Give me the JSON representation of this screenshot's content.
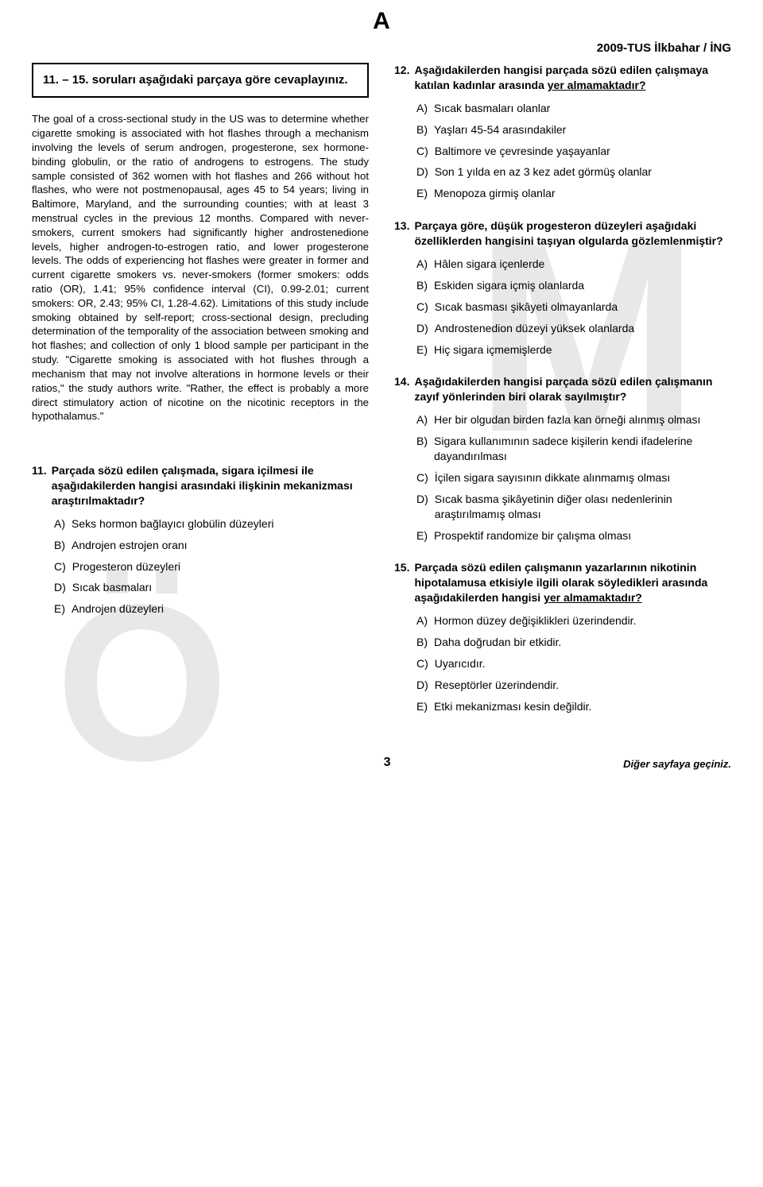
{
  "meta": {
    "top_letter": "A",
    "header_right": "2009-TUS İlkbahar / İNG",
    "page_number": "3",
    "footer_right": "Diğer sayfaya geçiniz."
  },
  "watermarks": {
    "wm1": "M",
    "wm2": "Ö"
  },
  "instruction": "11. – 15. soruları aşağıdaki parçaya göre cevaplayınız.",
  "passage": "The goal of a cross-sectional study in the US was to determine whether cigarette smoking is associated with hot flashes through a mechanism involving the levels of serum androgen, progesterone, sex hormone-binding globulin, or the ratio of androgens to estrogens. The study sample consisted of 362 women with hot flashes and 266 without hot flashes, who were not postmenopausal, ages 45 to 54 years; living in Baltimore, Maryland, and the surrounding counties; with at least 3 menstrual cycles in the previous 12 months. Compared with never-smokers, current smokers had significantly higher androstenedione levels, higher androgen-to-estrogen ratio, and lower progesterone levels. The odds of experiencing hot flashes were greater in former and current cigarette smokers vs. never-smokers (former smokers: odds ratio (OR), 1.41; 95% confidence interval (CI), 0.99-2.01; current smokers: OR, 2.43; 95% CI, 1.28-4.62). Limitations of this study include smoking obtained by self-report; cross-sectional design, precluding determination of the temporality of the association between smoking and hot flashes; and collection of only 1 blood sample per participant in the study. \"Cigarette smoking is associated with hot flushes through a mechanism that may not involve alterations in hormone levels or their ratios,\" the study authors write. \"Rather, the effect is probably a more direct stimulatory action of nicotine on the nicotinic receptors in the hypothalamus.\"",
  "questions": [
    {
      "num": "11.",
      "stem": "Parçada sözü edilen çalışmada, sigara içilmesi ile aşağıdakilerden hangisi arasındaki ilişkinin mekanizması araştırılmaktadır?",
      "underline_part": "",
      "options": [
        {
          "l": "A)",
          "t": "Seks hormon bağlayıcı globülin düzeyleri"
        },
        {
          "l": "B)",
          "t": "Androjen estrojen oranı"
        },
        {
          "l": "C)",
          "t": "Progesteron düzeyleri"
        },
        {
          "l": "D)",
          "t": "Sıcak basmaları"
        },
        {
          "l": "E)",
          "t": "Androjen düzeyleri"
        }
      ]
    },
    {
      "num": "12.",
      "stem_pre": "Aşağıdakilerden hangisi parçada sözü edilen çalışmaya katılan kadınlar arasında ",
      "stem_und": "yer almamaktadır?",
      "stem_post": "",
      "options": [
        {
          "l": "A)",
          "t": "Sıcak basmaları olanlar"
        },
        {
          "l": "B)",
          "t": "Yaşları 45-54 arasındakiler"
        },
        {
          "l": "C)",
          "t": "Baltimore ve çevresinde yaşayanlar"
        },
        {
          "l": "D)",
          "t": "Son 1 yılda en az 3 kez adet görmüş olanlar"
        },
        {
          "l": "E)",
          "t": "Menopoza girmiş olanlar"
        }
      ]
    },
    {
      "num": "13.",
      "stem": "Parçaya göre, düşük progesteron düzeyleri aşağıdaki özelliklerden hangisini taşıyan olgularda gözlemlenmiştir?",
      "options": [
        {
          "l": "A)",
          "t": "Hâlen sigara içenlerde"
        },
        {
          "l": "B)",
          "t": "Eskiden sigara içmiş olanlarda"
        },
        {
          "l": "C)",
          "t": "Sıcak basması şikâyeti olmayanlarda"
        },
        {
          "l": "D)",
          "t": "Androstenedion düzeyi yüksek olanlarda"
        },
        {
          "l": "E)",
          "t": "Hiç sigara içmemişlerde"
        }
      ]
    },
    {
      "num": "14.",
      "stem": "Aşağıdakilerden hangisi parçada sözü edilen çalışmanın zayıf yönlerinden biri olarak sayılmıştır?",
      "options": [
        {
          "l": "A)",
          "t": "Her bir olgudan birden fazla kan örneği alınmış olması"
        },
        {
          "l": "B)",
          "t": "Sigara kullanımının sadece kişilerin kendi ifadelerine dayandırılması"
        },
        {
          "l": "C)",
          "t": "İçilen sigara sayısının dikkate alınmamış olması"
        },
        {
          "l": "D)",
          "t": "Sıcak basma şikâyetinin diğer olası nedenlerinin araştırılmamış olması"
        },
        {
          "l": "E)",
          "t": "Prospektif randomize bir çalışma olması"
        }
      ]
    },
    {
      "num": "15.",
      "stem_pre": "Parçada sözü edilen çalışmanın yazarlarının nikotinin hipotalamusa etkisiyle ilgili olarak söyledikleri arasında aşağıdakilerden hangisi ",
      "stem_und": "yer almamaktadır?",
      "stem_post": "",
      "options": [
        {
          "l": "A)",
          "t": "Hormon düzey değişiklikleri üzerindendir."
        },
        {
          "l": "B)",
          "t": "Daha doğrudan bir etkidir."
        },
        {
          "l": "C)",
          "t": "Uyarıcıdır."
        },
        {
          "l": "D)",
          "t": "Reseptörler üzerindendir."
        },
        {
          "l": "E)",
          "t": "Etki mekanizması kesin değildir."
        }
      ]
    }
  ]
}
